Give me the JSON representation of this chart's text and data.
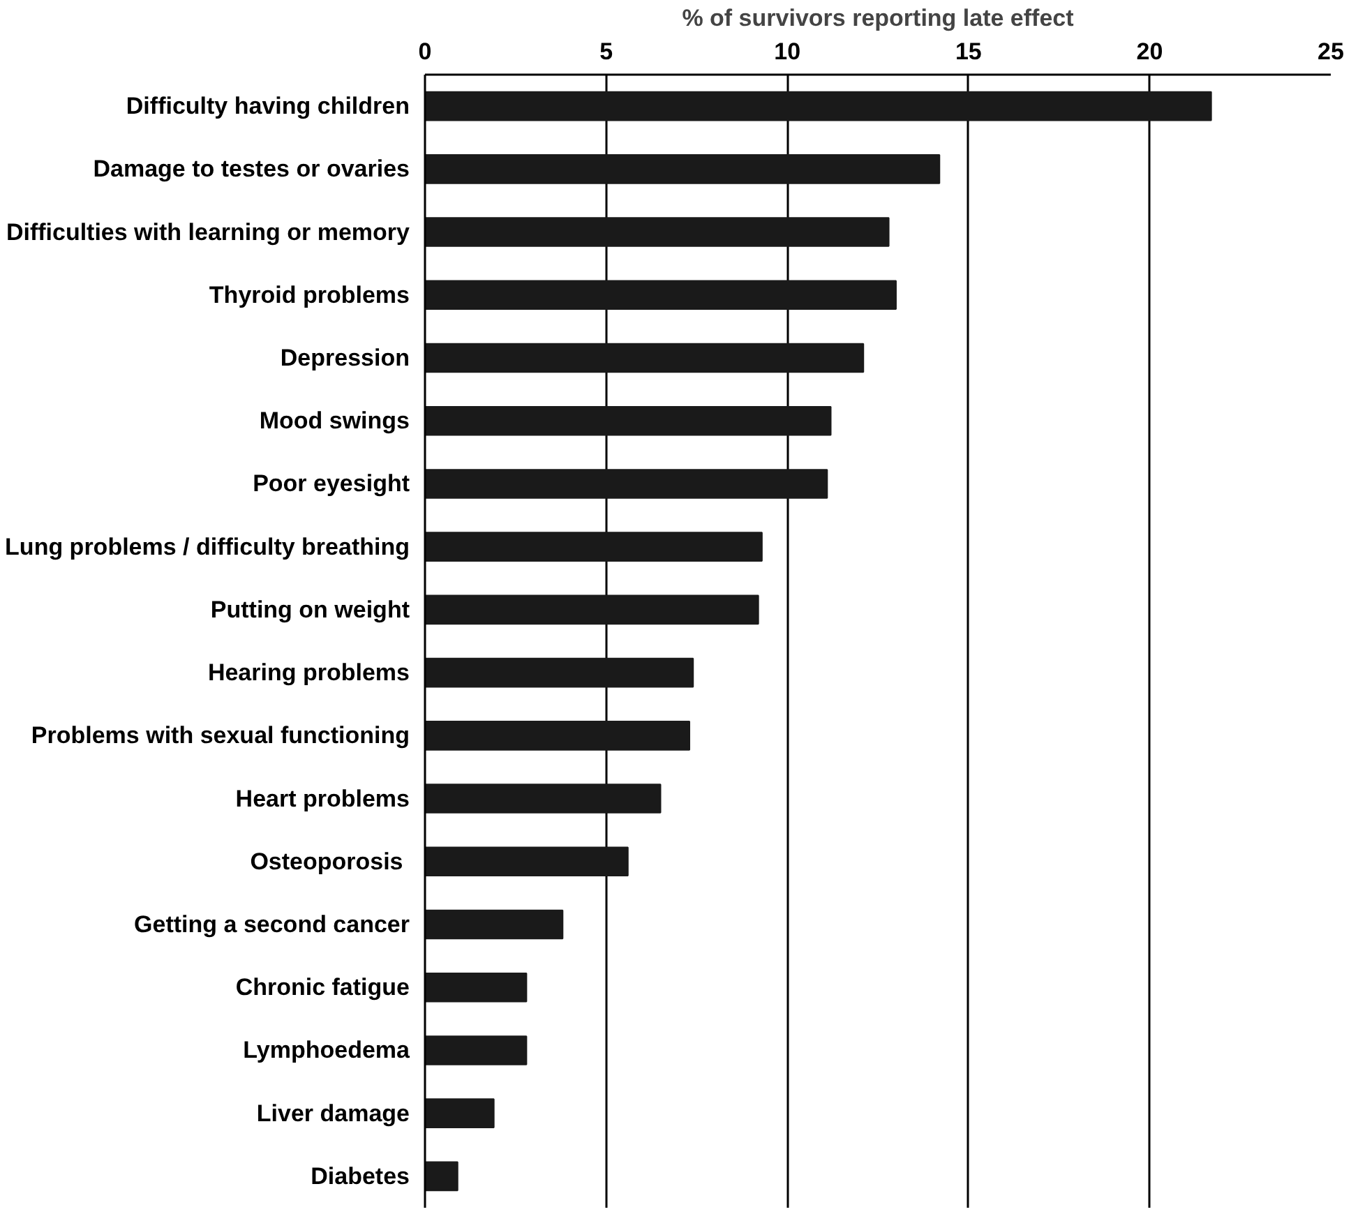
{
  "chart_data": {
    "type": "bar",
    "orientation": "horizontal",
    "xlabel": "% of survivors reporting late effect",
    "categories": [
      "Difficulty having children",
      "Damage to testes or ovaries",
      "Difficulties with learning or memory",
      "Thyroid problems",
      "Depression",
      "Mood swings",
      "Poor eyesight",
      "Lung problems / difficulty breathing",
      "Putting on weight",
      "Hearing problems",
      "Problems with sexual functioning",
      "Heart problems",
      "Osteoporosis ",
      "Getting a second cancer",
      "Chronic fatigue",
      "Lymphoedema",
      "Liver damage",
      "Diabetes"
    ],
    "values": [
      21.7,
      14.2,
      12.8,
      13.0,
      12.1,
      11.2,
      11.1,
      9.3,
      9.2,
      7.4,
      7.3,
      6.5,
      5.6,
      3.8,
      2.8,
      2.8,
      1.9,
      0.9
    ],
    "color": "#1a1a1a",
    "xlim": [
      0,
      25
    ],
    "xticks": [
      0,
      5,
      10,
      15,
      20,
      25
    ],
    "grid": "x"
  }
}
